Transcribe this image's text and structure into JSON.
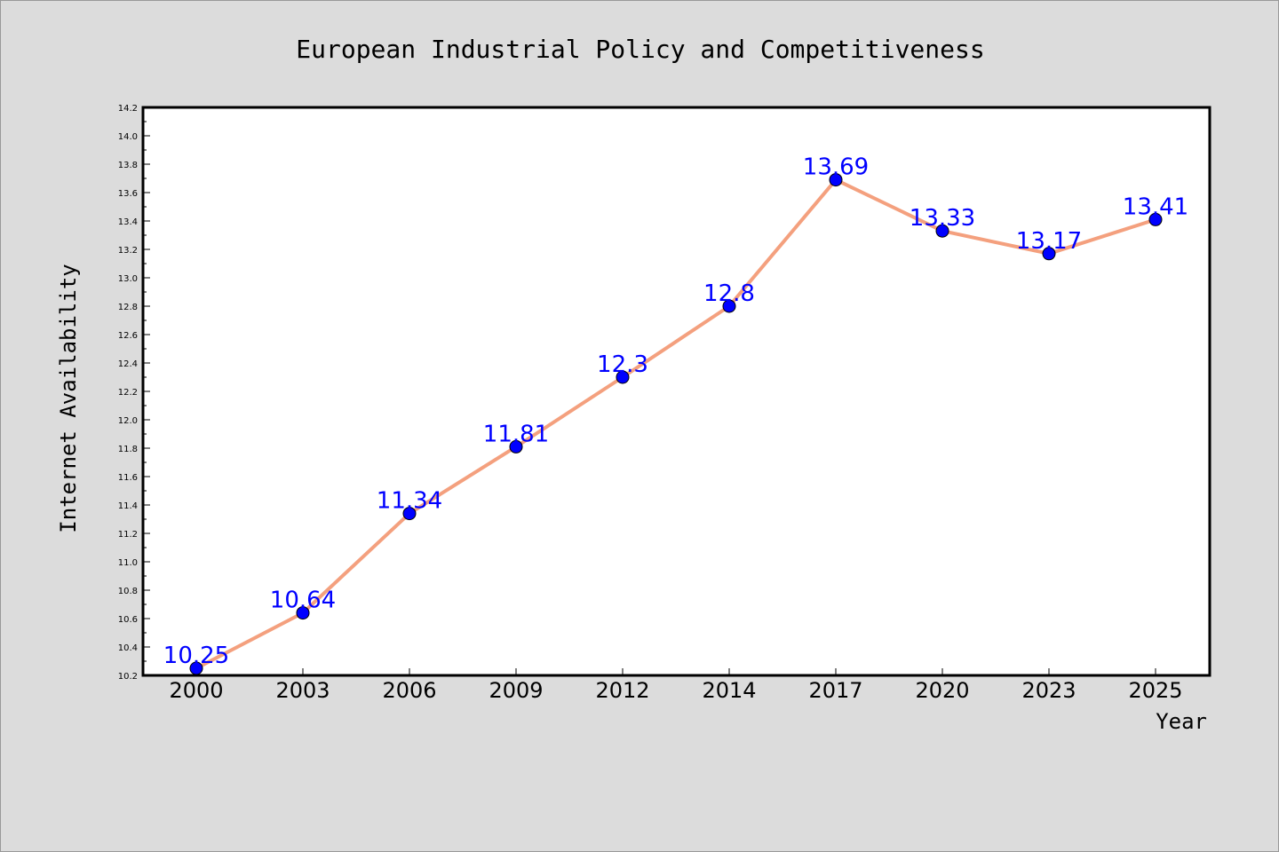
{
  "chart_data": {
    "type": "line",
    "title": "European Industrial Policy and Competitiveness",
    "xlabel": "Year",
    "ylabel": "Internet Availability",
    "categories": [
      "2000",
      "2003",
      "2006",
      "2009",
      "2012",
      "2014",
      "2017",
      "2020",
      "2023",
      "2025"
    ],
    "series": [
      {
        "values": [
          10.25,
          10.64,
          11.34,
          11.81,
          12.3,
          12.8,
          13.69,
          13.33,
          13.17,
          13.41
        ],
        "labels": [
          "10.25",
          "10.64",
          "11.34",
          "11.81",
          "12.3",
          "12.8",
          "13.69",
          "13.33",
          "13.17",
          "13.41"
        ],
        "line_color": "#f4a07e",
        "marker_color": "#0000ff",
        "label_color": "#0000ff"
      }
    ],
    "ylim": [
      10.2,
      14.2
    ],
    "yticks": [
      "10.2",
      "10.4",
      "10.6",
      "10.8",
      "11.0",
      "11.2",
      "11.4",
      "11.6",
      "11.8",
      "12.0",
      "12.2",
      "12.4",
      "12.6",
      "12.8",
      "13.0",
      "13.2",
      "13.4",
      "13.6",
      "13.8",
      "14.0",
      "14.2"
    ],
    "grid": false,
    "legend": "none",
    "background": "#dcdcdc",
    "plot_background": "#ffffff"
  }
}
